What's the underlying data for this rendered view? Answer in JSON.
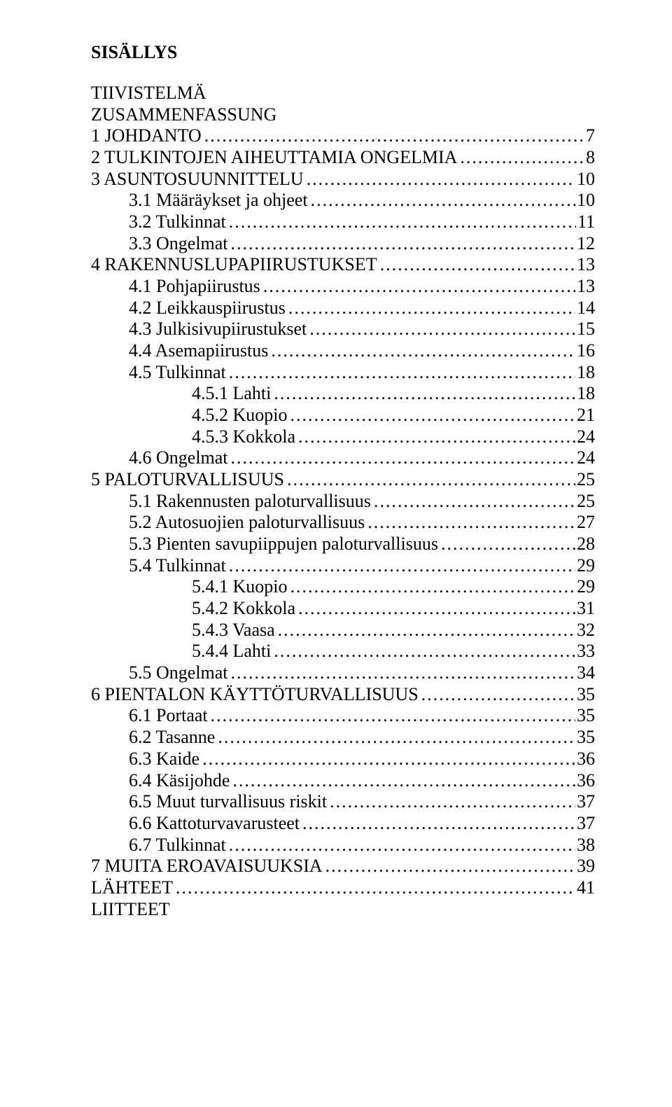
{
  "title": "SISÄLLYS",
  "front": [
    "TIIVISTELMÄ",
    "ZUSAMMENFASSUNG"
  ],
  "toc": [
    {
      "label": "1 JOHDANTO",
      "page": "7",
      "indent": 0
    },
    {
      "label": "2 TULKINTOJEN AIHEUTTAMIA ONGELMIA",
      "page": "8",
      "indent": 0
    },
    {
      "label": "3 ASUNTOSUUNNITTELU",
      "page": "10",
      "indent": 0
    },
    {
      "label": "3.1 Määräykset ja ohjeet",
      "page": "10",
      "indent": 1
    },
    {
      "label": "3.2 Tulkinnat",
      "page": "11",
      "indent": 1
    },
    {
      "label": "3.3 Ongelmat",
      "page": "12",
      "indent": 1
    },
    {
      "label": "4 RAKENNUSLUPAPIIRUSTUKSET",
      "page": "13",
      "indent": 0
    },
    {
      "label": "4.1 Pohjapiirustus",
      "page": "13",
      "indent": 1
    },
    {
      "label": "4.2 Leikkauspiirustus",
      "page": "14",
      "indent": 1
    },
    {
      "label": "4.3 Julkisivupiirustukset",
      "page": "15",
      "indent": 1
    },
    {
      "label": "4.4 Asemapiirustus",
      "page": "16",
      "indent": 1
    },
    {
      "label": "4.5 Tulkinnat",
      "page": "18",
      "indent": 1
    },
    {
      "label": "4.5.1 Lahti",
      "page": "18",
      "indent": 2
    },
    {
      "label": "4.5.2 Kuopio",
      "page": "21",
      "indent": 2
    },
    {
      "label": "4.5.3 Kokkola",
      "page": "24",
      "indent": 2
    },
    {
      "label": "4.6 Ongelmat",
      "page": "24",
      "indent": 1
    },
    {
      "label": "5 PALOTURVALLISUUS",
      "page": "25",
      "indent": 0
    },
    {
      "label": "5.1 Rakennusten paloturvallisuus",
      "page": "25",
      "indent": 1
    },
    {
      "label": "5.2 Autosuojien paloturvallisuus",
      "page": "27",
      "indent": 1
    },
    {
      "label": "5.3 Pienten savupiippujen paloturvallisuus",
      "page": "28",
      "indent": 1
    },
    {
      "label": "5.4 Tulkinnat",
      "page": "29",
      "indent": 1
    },
    {
      "label": "5.4.1 Kuopio",
      "page": "29",
      "indent": 2
    },
    {
      "label": "5.4.2 Kokkola",
      "page": "31",
      "indent": 2
    },
    {
      "label": "5.4.3 Vaasa",
      "page": "32",
      "indent": 2
    },
    {
      "label": "5.4.4 Lahti",
      "page": "33",
      "indent": 2
    },
    {
      "label": "5.5 Ongelmat",
      "page": "34",
      "indent": 1
    },
    {
      "label": "6 PIENTALON KÄYTTÖTURVALLISUUS",
      "page": "35",
      "indent": 0
    },
    {
      "label": "6.1 Portaat",
      "page": "35",
      "indent": 1
    },
    {
      "label": "6.2 Tasanne",
      "page": "35",
      "indent": 1
    },
    {
      "label": "6.3 Kaide",
      "page": "36",
      "indent": 1
    },
    {
      "label": "6.4 Käsijohde",
      "page": "36",
      "indent": 1
    },
    {
      "label": "6.5 Muut turvallisuus riskit",
      "page": "37",
      "indent": 1
    },
    {
      "label": "6.6 Kattoturvavarusteet",
      "page": "37",
      "indent": 1
    },
    {
      "label": "6.7 Tulkinnat",
      "page": "38",
      "indent": 1
    },
    {
      "label": "7 MUITA EROAVAISUUKSIA",
      "page": "39",
      "indent": 0
    },
    {
      "label": "LÄHTEET",
      "page": "41",
      "indent": 0
    }
  ],
  "back": [
    "LIITTEET"
  ]
}
